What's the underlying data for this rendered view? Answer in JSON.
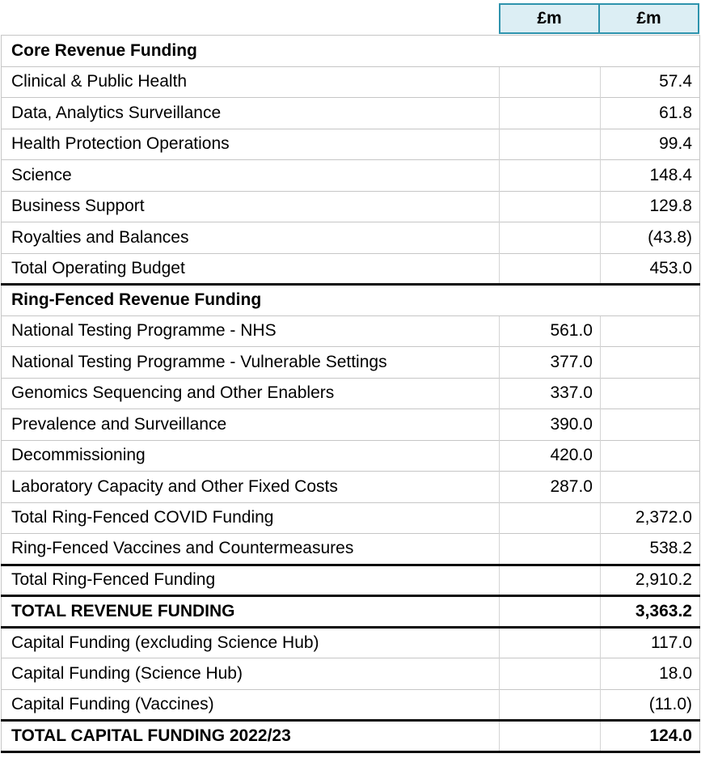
{
  "header": {
    "columns": [
      "£m",
      "£m"
    ]
  },
  "colors": {
    "header_bg": "#dceef4",
    "header_border": "#2e93ad",
    "grid_line": "#c6c6c6",
    "strong_line": "#0b0b0b"
  },
  "table": {
    "rows": [
      {
        "label": "Core Revenue Funding",
        "section": true
      },
      {
        "label": "Clinical & Public Health",
        "col1": "",
        "col2": "57.4"
      },
      {
        "label": "Data, Analytics Surveillance",
        "col1": "",
        "col2": "61.8"
      },
      {
        "label": "Health Protection Operations",
        "col1": "",
        "col2": "99.4"
      },
      {
        "label": "Science",
        "col1": "",
        "col2": "148.4"
      },
      {
        "label": "Business Support",
        "col1": "",
        "col2": "129.8"
      },
      {
        "label": "Royalties and Balances",
        "col1": "",
        "col2": "(43.8)"
      },
      {
        "label": "Total Operating Budget",
        "col1": "",
        "col2": "453.0"
      },
      {
        "label": "Ring-Fenced Revenue Funding",
        "section": true,
        "topStrong": true
      },
      {
        "label": "National Testing Programme - NHS",
        "col1": "561.0",
        "col2": ""
      },
      {
        "label": "National Testing Programme - Vulnerable Settings",
        "col1": "377.0",
        "col2": ""
      },
      {
        "label": "Genomics Sequencing and Other Enablers",
        "col1": "337.0",
        "col2": ""
      },
      {
        "label": "Prevalence and Surveillance",
        "col1": "390.0",
        "col2": ""
      },
      {
        "label": "Decommissioning",
        "col1": "420.0",
        "col2": ""
      },
      {
        "label": "Laboratory Capacity and Other Fixed Costs",
        "col1": "287.0",
        "col2": ""
      },
      {
        "label": "Total Ring-Fenced COVID Funding",
        "col1": "",
        "col2": "2,372.0"
      },
      {
        "label": "Ring-Fenced Vaccines and Countermeasures",
        "col1": "",
        "col2": "538.2"
      },
      {
        "label": "Total Ring-Fenced Funding",
        "col1": "",
        "col2": "2,910.2",
        "topStrong": true
      },
      {
        "label": "TOTAL REVENUE FUNDING",
        "col1": "",
        "col2": "3,363.2",
        "bold": true,
        "topStrong": true
      },
      {
        "label": "Capital Funding (excluding Science Hub)",
        "col1": "",
        "col2": "117.0",
        "topStrong": true
      },
      {
        "label": "Capital Funding (Science Hub)",
        "col1": "",
        "col2": "18.0"
      },
      {
        "label": "Capital Funding (Vaccines)",
        "col1": "",
        "col2": "(11.0)"
      },
      {
        "label": "TOTAL CAPITAL FUNDING 2022/23",
        "col1": "",
        "col2": "124.0",
        "bold": true,
        "topStrong": true,
        "bottomStrong": true
      }
    ]
  }
}
